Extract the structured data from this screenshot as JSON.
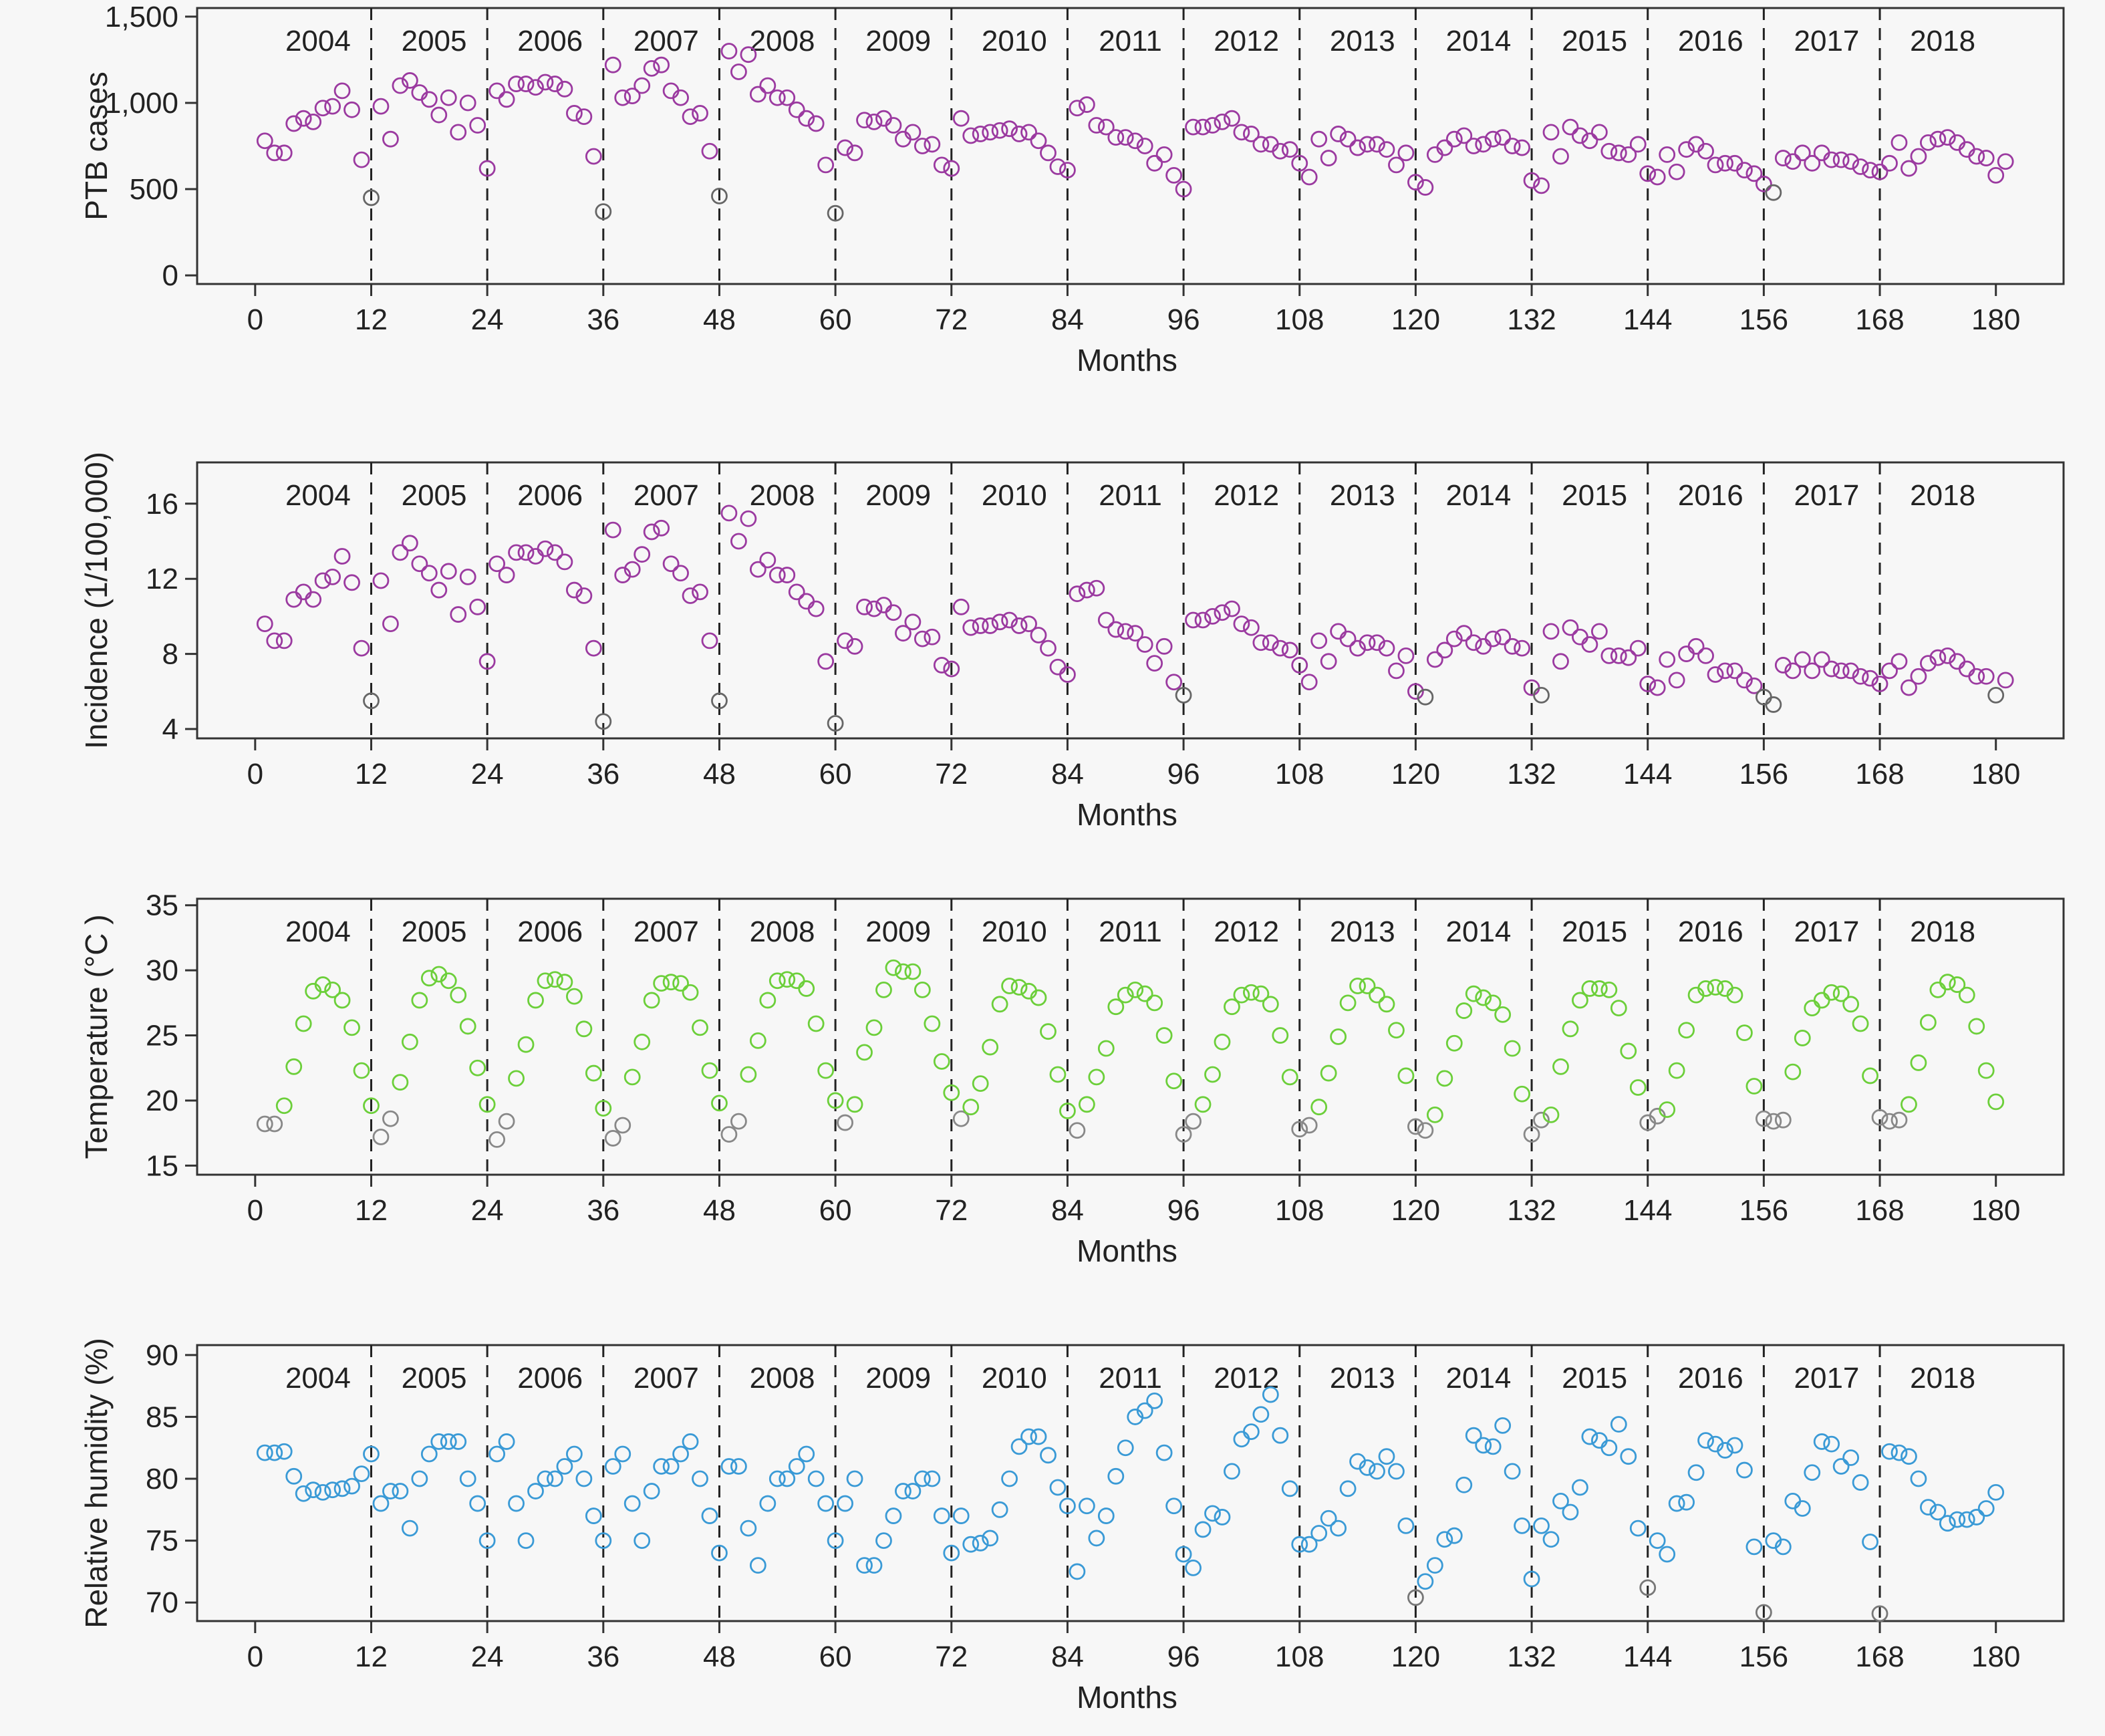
{
  "chart_data": [
    {
      "type": "scatter",
      "name": "ptb-cases",
      "xlabel": "Months",
      "ylabel": "PTB cases",
      "xlim": [
        -6,
        187
      ],
      "ylim": [
        -50,
        1550
      ],
      "xticks": [
        0,
        12,
        24,
        36,
        48,
        60,
        72,
        84,
        96,
        108,
        120,
        132,
        144,
        156,
        168,
        180
      ],
      "yticks": [
        0,
        500,
        1000,
        1500
      ],
      "ytick_labels": [
        "0",
        "500",
        "1,000",
        "1,500"
      ],
      "years": [
        "2004",
        "2005",
        "2006",
        "2007",
        "2008",
        "2009",
        "2010",
        "2011",
        "2012",
        "2013",
        "2014",
        "2015",
        "2016",
        "2017",
        "2018"
      ],
      "color": "#9b3aa0",
      "low_color": "#666666",
      "values": [
        780,
        710,
        710,
        880,
        910,
        890,
        970,
        980,
        1070,
        960,
        670,
        450,
        980,
        790,
        1100,
        1130,
        1060,
        1020,
        930,
        1030,
        830,
        1000,
        870,
        620,
        1070,
        1020,
        1110,
        1110,
        1090,
        1120,
        1110,
        1080,
        940,
        920,
        690,
        370,
        1220,
        1030,
        1040,
        1100,
        1200,
        1220,
        1070,
        1030,
        920,
        940,
        720,
        460,
        1300,
        1180,
        1280,
        1050,
        1100,
        1030,
        1030,
        960,
        910,
        880,
        640,
        360,
        740,
        710,
        900,
        890,
        910,
        870,
        790,
        830,
        750,
        760,
        640,
        620,
        910,
        810,
        820,
        830,
        840,
        850,
        820,
        830,
        780,
        710,
        630,
        610,
        970,
        990,
        870,
        860,
        800,
        800,
        780,
        750,
        650,
        700,
        580,
        500,
        860,
        860,
        870,
        890,
        910,
        830,
        820,
        760,
        760,
        720,
        730,
        650,
        570,
        790,
        680,
        820,
        790,
        740,
        760,
        760,
        730,
        640,
        710,
        540,
        510,
        700,
        740,
        790,
        810,
        750,
        760,
        790,
        800,
        750,
        740,
        550,
        520,
        830,
        690,
        860,
        810,
        780,
        830,
        720,
        710,
        700,
        760,
        590,
        570,
        700,
        600,
        730,
        760,
        720,
        640,
        650,
        650,
        610,
        590,
        530,
        480,
        680,
        660,
        710,
        650,
        710,
        670,
        670,
        660,
        630,
        610,
        600,
        650,
        770,
        620,
        690,
        770,
        790,
        800,
        770,
        730,
        690,
        680,
        580,
        660
      ]
    },
    {
      "type": "scatter",
      "name": "incidence",
      "xlabel": "Months",
      "ylabel": "Incidence (1/100,000)",
      "xlim": [
        -6,
        187
      ],
      "ylim": [
        3.5,
        18.2
      ],
      "xticks": [
        0,
        12,
        24,
        36,
        48,
        60,
        72,
        84,
        96,
        108,
        120,
        132,
        144,
        156,
        168,
        180
      ],
      "yticks": [
        4,
        8,
        12,
        16
      ],
      "ytick_labels": [
        "4",
        "8",
        "12",
        "16"
      ],
      "years": [
        "2004",
        "2005",
        "2006",
        "2007",
        "2008",
        "2009",
        "2010",
        "2011",
        "2012",
        "2013",
        "2014",
        "2015",
        "2016",
        "2017",
        "2018"
      ],
      "color": "#9b3aa0",
      "low_color": "#666666",
      "values": [
        9.6,
        8.7,
        8.7,
        10.9,
        11.3,
        10.9,
        11.9,
        12.1,
        13.2,
        11.8,
        8.3,
        5.5,
        11.9,
        9.6,
        13.4,
        13.9,
        12.8,
        12.3,
        11.4,
        12.4,
        10.1,
        12.1,
        10.5,
        7.6,
        12.8,
        12.2,
        13.4,
        13.4,
        13.2,
        13.6,
        13.4,
        12.9,
        11.4,
        11.1,
        8.3,
        4.4,
        14.6,
        12.2,
        12.5,
        13.3,
        14.5,
        14.7,
        12.8,
        12.3,
        11.1,
        11.3,
        8.7,
        5.5,
        15.5,
        14.0,
        15.2,
        12.5,
        13.0,
        12.2,
        12.2,
        11.3,
        10.8,
        10.4,
        7.6,
        4.3,
        8.7,
        8.4,
        10.5,
        10.4,
        10.6,
        10.2,
        9.1,
        9.7,
        8.8,
        8.9,
        7.4,
        7.2,
        10.5,
        9.4,
        9.5,
        9.5,
        9.7,
        9.8,
        9.5,
        9.6,
        9.0,
        8.3,
        7.3,
        6.9,
        11.2,
        11.4,
        11.5,
        9.8,
        9.3,
        9.2,
        9.1,
        8.5,
        7.5,
        8.4,
        6.5,
        5.8,
        9.8,
        9.8,
        10.0,
        10.2,
        10.4,
        9.6,
        9.4,
        8.6,
        8.6,
        8.3,
        8.2,
        7.4,
        6.5,
        8.7,
        7.6,
        9.2,
        8.8,
        8.3,
        8.6,
        8.6,
        8.3,
        7.1,
        7.9,
        6.0,
        5.7,
        7.7,
        8.2,
        8.8,
        9.1,
        8.6,
        8.4,
        8.8,
        8.9,
        8.4,
        8.3,
        6.2,
        5.8,
        9.2,
        7.6,
        9.4,
        8.9,
        8.5,
        9.2,
        7.9,
        7.9,
        7.8,
        8.3,
        6.4,
        6.2,
        7.7,
        6.6,
        8.0,
        8.4,
        7.9,
        6.9,
        7.1,
        7.1,
        6.6,
        6.3,
        5.7,
        5.3,
        7.4,
        7.1,
        7.7,
        7.1,
        7.7,
        7.2,
        7.1,
        7.1,
        6.8,
        6.7,
        6.4,
        7.1,
        7.6,
        6.2,
        6.8,
        7.5,
        7.8,
        7.9,
        7.6,
        7.2,
        6.8,
        6.8,
        5.8,
        6.6
      ]
    },
    {
      "type": "scatter",
      "name": "temperature",
      "xlabel": "Months",
      "ylabel": "Temperature (°C )",
      "xlim": [
        -6,
        187
      ],
      "ylim": [
        14.3,
        35.5
      ],
      "xticks": [
        0,
        12,
        24,
        36,
        48,
        60,
        72,
        84,
        96,
        108,
        120,
        132,
        144,
        156,
        168,
        180
      ],
      "yticks": [
        15,
        20,
        25,
        30,
        35
      ],
      "ytick_labels": [
        "15",
        "20",
        "25",
        "30",
        "35"
      ],
      "years": [
        "2004",
        "2005",
        "2006",
        "2007",
        "2008",
        "2009",
        "2010",
        "2011",
        "2012",
        "2013",
        "2014",
        "2015",
        "2016",
        "2017",
        "2018"
      ],
      "color": "#6ccf3a",
      "low_color": "#888888",
      "values": [
        18.2,
        18.2,
        19.6,
        22.6,
        25.9,
        28.4,
        28.9,
        28.5,
        27.7,
        25.6,
        22.3,
        19.6,
        17.2,
        18.6,
        21.4,
        24.5,
        27.7,
        29.4,
        29.7,
        29.2,
        28.1,
        25.7,
        22.5,
        19.7,
        17.0,
        18.4,
        21.7,
        24.3,
        27.7,
        29.2,
        29.3,
        29.1,
        28.0,
        25.5,
        22.1,
        19.4,
        17.1,
        18.1,
        21.8,
        24.5,
        27.7,
        29.0,
        29.1,
        29.0,
        28.3,
        25.6,
        22.3,
        19.8,
        17.4,
        18.4,
        22.0,
        24.6,
        27.7,
        29.2,
        29.3,
        29.2,
        28.6,
        25.9,
        22.3,
        20.0,
        18.3,
        19.7,
        23.7,
        25.6,
        28.5,
        30.2,
        29.9,
        29.9,
        28.5,
        25.9,
        23.0,
        20.6,
        18.6,
        19.5,
        21.3,
        24.1,
        27.4,
        28.8,
        28.7,
        28.4,
        27.9,
        25.3,
        22.0,
        19.2,
        17.7,
        19.7,
        21.8,
        24.0,
        27.2,
        28.1,
        28.5,
        28.2,
        27.5,
        25.0,
        21.5,
        17.4,
        18.4,
        19.7,
        22.0,
        24.5,
        27.2,
        28.1,
        28.3,
        28.2,
        27.4,
        25.0,
        21.8,
        17.8,
        18.1,
        19.5,
        22.1,
        24.9,
        27.5,
        28.8,
        28.8,
        28.1,
        27.4,
        25.4,
        21.9,
        18.0,
        17.7,
        18.9,
        21.7,
        24.4,
        26.9,
        28.2,
        27.9,
        27.5,
        26.6,
        24.0,
        20.5,
        17.4,
        18.5,
        18.9,
        22.6,
        25.5,
        27.7,
        28.6,
        28.6,
        28.5,
        27.1,
        23.8,
        21.0,
        18.3,
        18.8,
        19.3,
        22.3,
        25.4,
        28.1,
        28.6,
        28.7,
        28.6,
        28.1,
        25.2,
        21.1,
        18.6,
        18.4,
        18.5,
        22.2,
        24.8,
        27.1,
        27.7,
        28.3,
        28.2,
        27.4,
        25.9,
        21.9,
        18.7,
        18.4,
        18.5,
        19.7,
        22.9,
        26.0,
        28.5,
        29.1,
        28.9,
        28.1,
        25.7,
        22.3,
        19.9
      ]
    },
    {
      "type": "scatter",
      "name": "relative-humidity",
      "xlabel": "Months",
      "ylabel": "Relative humidity (%)",
      "xlim": [
        -6,
        187
      ],
      "ylim": [
        68.5,
        90.8
      ],
      "xticks": [
        0,
        12,
        24,
        36,
        48,
        60,
        72,
        84,
        96,
        108,
        120,
        132,
        144,
        156,
        168,
        180
      ],
      "yticks": [
        70,
        75,
        80,
        85,
        90
      ],
      "ytick_labels": [
        "70",
        "75",
        "80",
        "85",
        "90"
      ],
      "years": [
        "2004",
        "2005",
        "2006",
        "2007",
        "2008",
        "2009",
        "2010",
        "2011",
        "2012",
        "2013",
        "2014",
        "2015",
        "2016",
        "2017",
        "2018"
      ],
      "color": "#3a9ad6",
      "low_color": "#777777",
      "values": [
        82.1,
        82.1,
        82.2,
        80.2,
        78.8,
        79.1,
        78.9,
        79.1,
        79.2,
        79.4,
        80.4,
        82.0,
        78.0,
        79.0,
        79.0,
        76.0,
        80.0,
        82.0,
        83.0,
        83.0,
        83.0,
        80.0,
        78.0,
        75.0,
        82.0,
        83.0,
        78.0,
        75.0,
        79.0,
        80.0,
        80.0,
        81.0,
        82.0,
        80.0,
        77.0,
        75.0,
        81.0,
        82.0,
        78.0,
        75.0,
        79.0,
        81.0,
        81.0,
        82.0,
        83.0,
        80.0,
        77.0,
        74.0,
        81.0,
        81.0,
        76.0,
        73.0,
        78.0,
        80.0,
        80.0,
        81.0,
        82.0,
        80.0,
        78.0,
        75.0,
        78.0,
        80.0,
        73.0,
        73.0,
        75.0,
        77.0,
        79.0,
        79.0,
        80.0,
        80.0,
        77.0,
        74.0,
        77.0,
        74.7,
        74.8,
        75.2,
        77.5,
        80.0,
        82.6,
        83.4,
        83.4,
        81.9,
        79.3,
        77.8,
        72.5,
        77.8,
        75.2,
        77.0,
        80.2,
        82.5,
        85.0,
        85.5,
        86.3,
        82.1,
        77.8,
        73.9,
        72.8,
        75.9,
        77.2,
        76.9,
        80.6,
        83.2,
        83.8,
        85.2,
        86.8,
        83.5,
        79.2,
        74.7,
        74.7,
        75.6,
        76.8,
        76.0,
        79.2,
        81.4,
        80.9,
        80.6,
        81.8,
        80.6,
        76.2,
        70.4,
        71.7,
        73.0,
        75.1,
        75.4,
        79.5,
        83.5,
        82.7,
        82.6,
        84.3,
        80.6,
        76.2,
        71.9,
        76.2,
        75.1,
        78.2,
        77.3,
        79.3,
        83.4,
        83.1,
        82.5,
        84.4,
        81.8,
        76.0,
        71.2,
        75.0,
        73.9,
        78.0,
        78.1,
        80.5,
        83.1,
        82.8,
        82.3,
        82.7,
        80.7,
        74.5,
        69.2,
        75.0,
        74.5,
        78.2,
        77.6,
        80.5,
        83.0,
        82.8,
        81.0,
        81.7,
        79.7,
        74.9,
        69.1,
        82.2,
        82.1,
        81.8,
        80.0,
        77.7,
        77.3,
        76.4,
        76.7,
        76.7,
        76.9,
        77.6,
        78.9
      ]
    }
  ]
}
